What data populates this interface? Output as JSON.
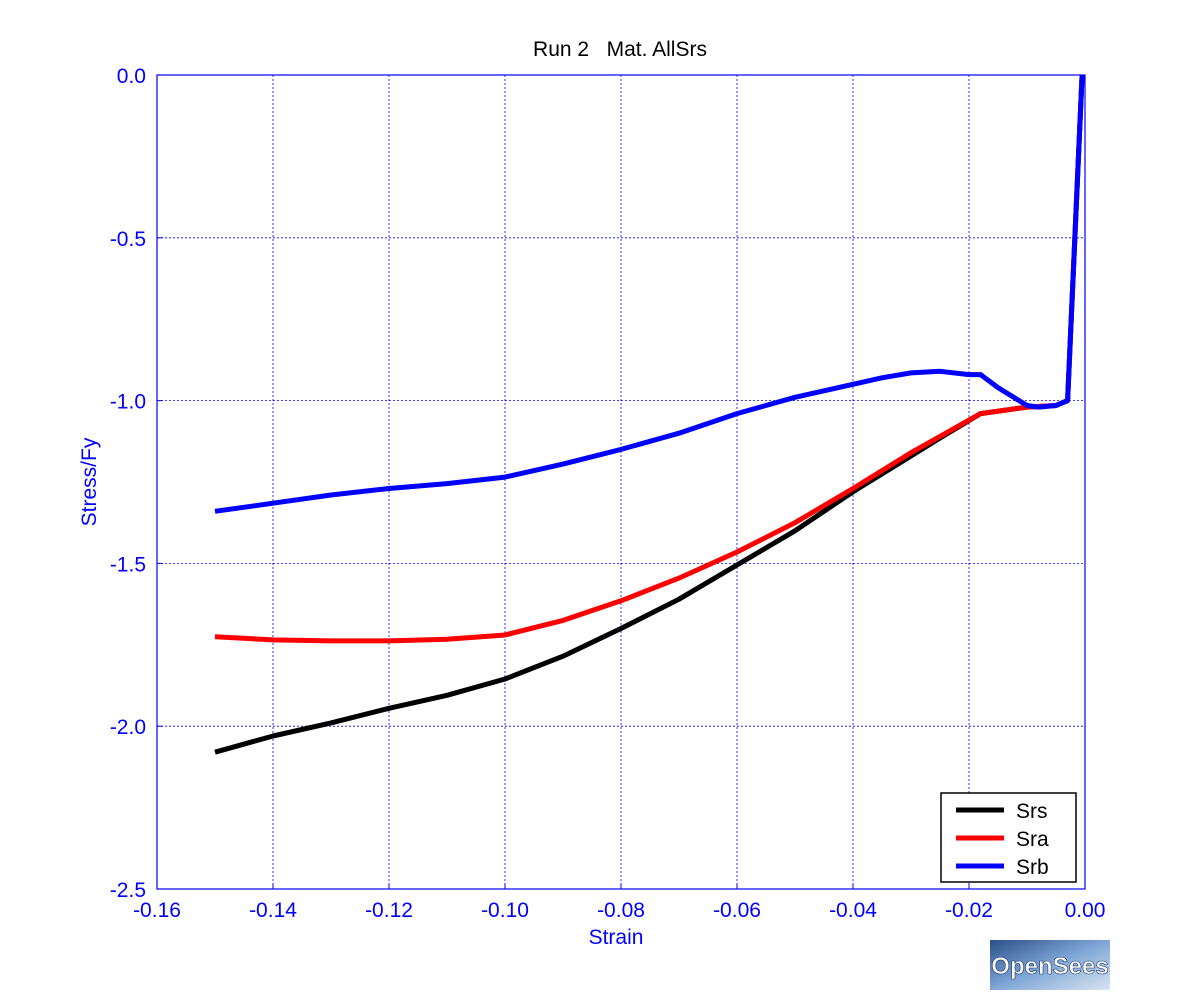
{
  "chart_data": {
    "type": "line",
    "title": "Run 2   Mat. AllSrs",
    "xlabel": "Strain",
    "ylabel": "Stress/Fy",
    "xlim": [
      -0.16,
      0.0
    ],
    "ylim": [
      -2.5,
      0.0
    ],
    "xticks": [
      -0.16,
      -0.14,
      -0.12,
      -0.1,
      -0.08,
      -0.06,
      -0.04,
      -0.02,
      0.0
    ],
    "xtick_labels": [
      "-0.16",
      "-0.14",
      "-0.12",
      "-0.10",
      "-0.08",
      "-0.06",
      "-0.04",
      "-0.02",
      "0.00"
    ],
    "yticks": [
      0.0,
      -0.5,
      -1.0,
      -1.5,
      -2.0,
      -2.5
    ],
    "ytick_labels": [
      "0.0",
      "-0.5",
      "-1.0",
      "-1.5",
      "-2.0",
      "-2.5"
    ],
    "grid": true,
    "legend_position": "bottom-right",
    "series": [
      {
        "name": "Srs",
        "color": "#000000",
        "x": [
          -0.15,
          -0.14,
          -0.13,
          -0.12,
          -0.11,
          -0.1,
          -0.09,
          -0.08,
          -0.07,
          -0.06,
          -0.05,
          -0.04,
          -0.03,
          -0.025,
          -0.018,
          -0.01,
          -0.005,
          -0.003,
          -0.0005
        ],
        "y": [
          -2.08,
          -2.03,
          -1.99,
          -1.945,
          -1.905,
          -1.855,
          -1.785,
          -1.7,
          -1.61,
          -1.505,
          -1.4,
          -1.28,
          -1.17,
          -1.115,
          -1.04,
          -1.02,
          -1.015,
          -1.0,
          0.0
        ]
      },
      {
        "name": "Sra",
        "color": "#ff0000",
        "x": [
          -0.15,
          -0.14,
          -0.13,
          -0.12,
          -0.11,
          -0.1,
          -0.09,
          -0.08,
          -0.07,
          -0.06,
          -0.05,
          -0.04,
          -0.03,
          -0.025,
          -0.018,
          -0.01,
          -0.005,
          -0.003,
          -0.0005
        ],
        "y": [
          -1.725,
          -1.735,
          -1.738,
          -1.738,
          -1.733,
          -1.72,
          -1.675,
          -1.615,
          -1.545,
          -1.465,
          -1.375,
          -1.27,
          -1.16,
          -1.11,
          -1.04,
          -1.02,
          -1.015,
          -1.0,
          0.0
        ]
      },
      {
        "name": "Srb",
        "color": "#0000ff",
        "x": [
          -0.15,
          -0.14,
          -0.13,
          -0.12,
          -0.11,
          -0.1,
          -0.09,
          -0.08,
          -0.07,
          -0.06,
          -0.05,
          -0.04,
          -0.035,
          -0.03,
          -0.025,
          -0.02,
          -0.018,
          -0.015,
          -0.01,
          -0.008,
          -0.005,
          -0.003,
          -0.0005
        ],
        "y": [
          -1.34,
          -1.315,
          -1.29,
          -1.27,
          -1.255,
          -1.235,
          -1.195,
          -1.15,
          -1.1,
          -1.04,
          -0.99,
          -0.95,
          -0.93,
          -0.915,
          -0.91,
          -0.92,
          -0.92,
          -0.96,
          -1.015,
          -1.02,
          -1.015,
          -1.0,
          0.0
        ]
      }
    ]
  },
  "logo": {
    "text": "OpenSees"
  }
}
